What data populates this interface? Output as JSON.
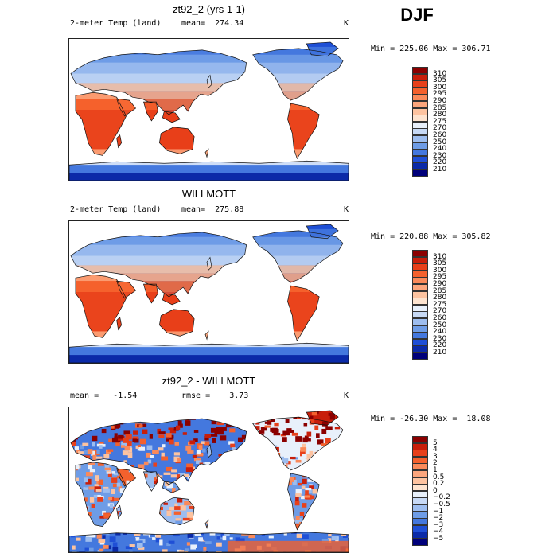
{
  "season": "DJF",
  "panels": [
    {
      "title": "zt92_2 (yrs 1-1)",
      "left_label": "2-meter Temp (land)",
      "center_label": "mean=  274.34",
      "unit": "K",
      "stats": "Min = 225.06 Max = 306.71",
      "legend": [
        "310",
        "305",
        "300",
        "295",
        "290",
        "285",
        "280",
        "275",
        "270",
        "260",
        "250",
        "240",
        "230",
        "220",
        "210"
      ],
      "legend_colors": [
        "#8b0000",
        "#c81e0a",
        "#e8401a",
        "#f4612d",
        "#fa8a5a",
        "#fca67d",
        "#fdc3a0",
        "#fde3cf",
        "#e8f0fb",
        "#c7d9f5",
        "#9dbdef",
        "#6e9ce6",
        "#4478de",
        "#1f4fd6",
        "#0b2aa8",
        "#00007a"
      ],
      "map_type": "temperature"
    },
    {
      "title": "WILLMOTT",
      "left_label": "2-meter Temp (land)",
      "center_label": "mean=  275.88",
      "unit": "K",
      "stats": "Min = 220.88 Max = 305.82",
      "legend": [
        "310",
        "305",
        "300",
        "295",
        "290",
        "285",
        "280",
        "275",
        "270",
        "260",
        "250",
        "240",
        "230",
        "220",
        "210"
      ],
      "legend_colors": [
        "#8b0000",
        "#c81e0a",
        "#e8401a",
        "#f4612d",
        "#fa8a5a",
        "#fca67d",
        "#fdc3a0",
        "#fde3cf",
        "#e8f0fb",
        "#c7d9f5",
        "#9dbdef",
        "#6e9ce6",
        "#4478de",
        "#1f4fd6",
        "#0b2aa8",
        "#00007a"
      ],
      "map_type": "temperature"
    },
    {
      "title": "zt92_2 - WILLMOTT",
      "left_label": "mean =   -1.54",
      "center_label": "rmse =    3.73",
      "unit": "K",
      "stats": "Min = -26.30 Max =  18.08",
      "legend": [
        "5",
        "4",
        "3",
        "2",
        "1",
        "0.5",
        "0.2",
        "0",
        "−0.2",
        "−0.5",
        "−1",
        "−2",
        "−3",
        "−4",
        "−5"
      ],
      "legend_colors": [
        "#8b0000",
        "#c81e0a",
        "#e8401a",
        "#f4612d",
        "#fa8a5a",
        "#fca67d",
        "#fdc3a0",
        "#fde3cf",
        "#e8f0fb",
        "#c7d9f5",
        "#9dbdef",
        "#6e9ce6",
        "#4478de",
        "#1f4fd6",
        "#0b2aa8",
        "#00007a"
      ],
      "map_type": "difference"
    }
  ]
}
